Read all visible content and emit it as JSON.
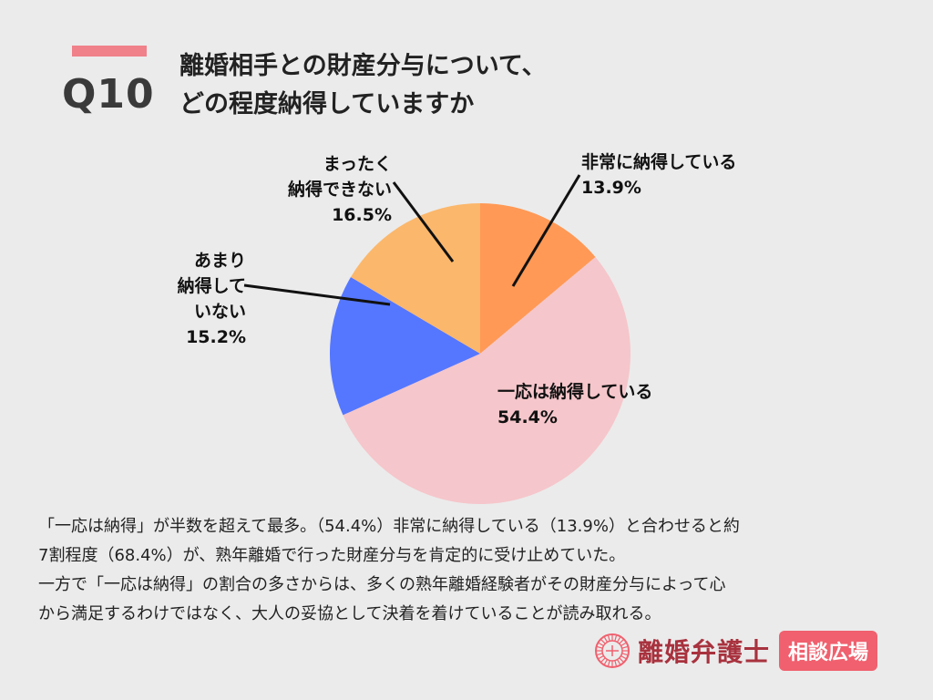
{
  "header": {
    "question_number": "Q10",
    "title_line1": "離婚相手との財産分与について、",
    "title_line2": "どの程度納得していますか"
  },
  "chart_data": {
    "type": "pie",
    "start": "top",
    "direction": "clockwise",
    "slices": [
      {
        "label_lines": [
          "非常に納得している"
        ],
        "value": 13.9,
        "value_label": "13.9%",
        "color": "#ff9955"
      },
      {
        "label_lines": [
          "一応は納得している"
        ],
        "value": 54.4,
        "value_label": "54.4%",
        "color": "#f5c6cb"
      },
      {
        "label_lines": [
          "あまり",
          "納得して",
          "いない"
        ],
        "value": 15.2,
        "value_label": "15.2%",
        "color": "#5577ff"
      },
      {
        "label_lines": [
          "まったく",
          "納得できない"
        ],
        "value": 16.5,
        "value_label": "16.5%",
        "color": "#fbb76b"
      }
    ]
  },
  "body": {
    "lines": [
      "「一応は納得」が半数を超えて最多。（54.4%）非常に納得している（13.9%）と合わせると約",
      "7割程度（68.4%）が、熟年離婚で行った財産分与を肯定的に受け止めていた。",
      "一方で「一応は納得」の割合の多さからは、多くの熟年離婚経験者がその財産分与によって心",
      "から満足するわけではなく、大人の妥協として決着を着けていることが読み取れる。"
    ]
  },
  "logo": {
    "name": "離婚弁護士",
    "badge": "相談広場"
  }
}
